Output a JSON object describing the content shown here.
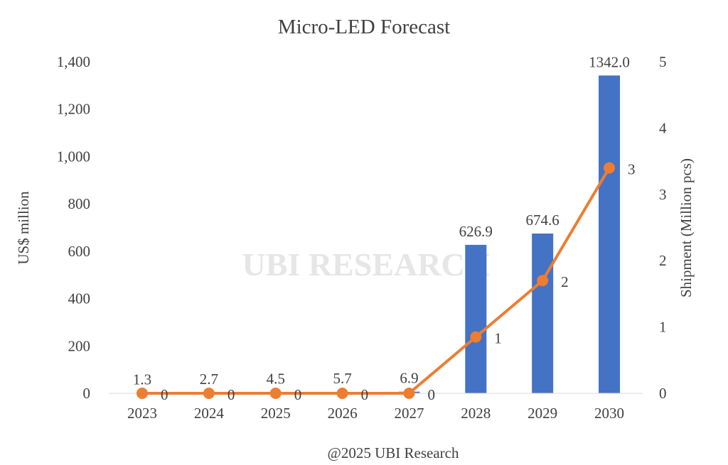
{
  "chart_data": {
    "type": "bar+line",
    "title": "Micro-LED Forecast",
    "categories": [
      "2023",
      "2024",
      "2025",
      "2026",
      "2027",
      "2028",
      "2029",
      "2030"
    ],
    "ylabel": "US$ million",
    "y2label": "Shipment (Million pcs)",
    "ylim": [
      0,
      1400
    ],
    "y2lim": [
      0,
      5
    ],
    "yticks": [
      "0",
      "200",
      "400",
      "600",
      "800",
      "1,000",
      "1,200",
      "1,400"
    ],
    "y2ticks": [
      "0",
      "1",
      "2",
      "3",
      "4",
      "5"
    ],
    "grid": false,
    "legend": "none",
    "series": [
      {
        "type": "bar",
        "axis": "left",
        "color": "#4472C4",
        "values": [
          1.3,
          2.7,
          4.5,
          5.7,
          6.9,
          626.9,
          674.6,
          1342.0
        ],
        "labels": [
          "1.3",
          "2.7",
          "4.5",
          "5.7",
          "6.9",
          "626.9",
          "674.6",
          "1342.0"
        ]
      },
      {
        "type": "line",
        "axis": "right",
        "color": "#ED7D31",
        "values": [
          0,
          0,
          0,
          0,
          0,
          0.85,
          1.7,
          3.4
        ],
        "labels": [
          "0",
          "0",
          "0",
          "0",
          "0",
          "1",
          "2",
          "3"
        ]
      }
    ],
    "footer": "@2025 UBI Research",
    "watermark": "UBI RESEARCH"
  }
}
